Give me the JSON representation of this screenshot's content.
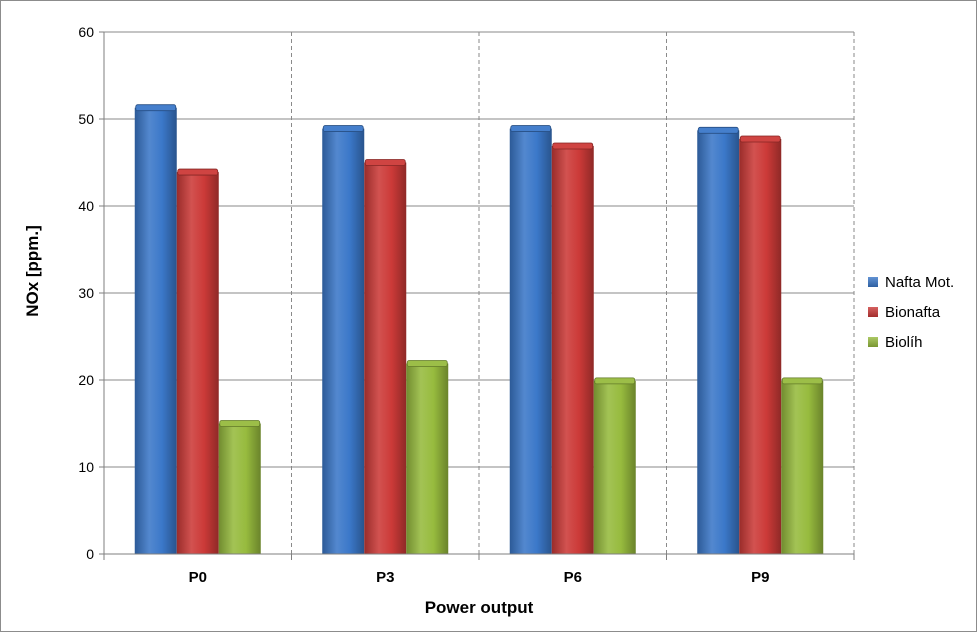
{
  "chart_data": {
    "type": "bar",
    "title": "",
    "xlabel": "Power output",
    "ylabel": "NOx [ppm.]",
    "ylim": [
      0,
      60
    ],
    "yticks": [
      0,
      10,
      20,
      30,
      40,
      50,
      60
    ],
    "categories": [
      "P0",
      "P3",
      "P6",
      "P9"
    ],
    "series": [
      {
        "name": "Nafta Mot.",
        "values": [
          51.3,
          48.9,
          48.9,
          48.7
        ],
        "color": "#3b78c9"
      },
      {
        "name": "Bionafta",
        "values": [
          43.9,
          45.0,
          46.9,
          47.7
        ],
        "color": "#cc3a38"
      },
      {
        "name": "Biolíh",
        "values": [
          15.0,
          21.9,
          19.9,
          19.9
        ],
        "color": "#97bb3e"
      }
    ],
    "grid": {
      "y": true,
      "x_dashed_separators": true
    },
    "legend_position": "right"
  }
}
